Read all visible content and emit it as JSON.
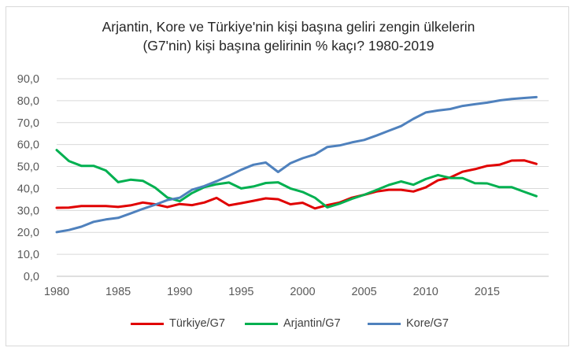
{
  "chart_data": {
    "type": "line",
    "title_lines": [
      "Arjantin, Kore ve Türkiye'nin kişi başına geliri zengin ülkelerin",
      "(G7'nin) kişi başına gelirinin % kaçı? 1980-2019"
    ],
    "xlabel": "",
    "ylabel": "",
    "x": [
      1980,
      1981,
      1982,
      1983,
      1984,
      1985,
      1986,
      1987,
      1988,
      1989,
      1990,
      1991,
      1992,
      1993,
      1994,
      1995,
      1996,
      1997,
      1998,
      1999,
      2000,
      2001,
      2002,
      2003,
      2004,
      2005,
      2006,
      2007,
      2008,
      2009,
      2010,
      2011,
      2012,
      2013,
      2014,
      2015,
      2016,
      2017,
      2018,
      2019
    ],
    "x_ticks": [
      "1980",
      "1985",
      "1990",
      "1995",
      "2000",
      "2005",
      "2010",
      "2015"
    ],
    "x_tick_values": [
      1980,
      1985,
      1990,
      1995,
      2000,
      2005,
      2010,
      2015
    ],
    "xlim": [
      1980,
      2020
    ],
    "y_ticks": [
      "0,0",
      "10,0",
      "20,0",
      "30,0",
      "40,0",
      "50,0",
      "60,0",
      "70,0",
      "80,0",
      "90,0"
    ],
    "ylim": [
      0,
      90
    ],
    "grid": "horizontal",
    "legend_position": "bottom",
    "series": [
      {
        "name": "Türkiye/G7",
        "color": "#e00000",
        "values": [
          31.2,
          31.3,
          32.0,
          32.0,
          32.0,
          31.6,
          32.3,
          33.6,
          32.8,
          31.5,
          32.9,
          32.4,
          33.6,
          35.7,
          32.3,
          33.3,
          34.4,
          35.5,
          35.1,
          32.8,
          33.5,
          30.9,
          32.4,
          33.6,
          35.8,
          37.1,
          38.6,
          39.4,
          39.4,
          38.6,
          40.5,
          43.7,
          45.0,
          47.6,
          48.8,
          50.3,
          50.8,
          52.7,
          52.8,
          51.2
        ]
      },
      {
        "name": "Arjantin/G7",
        "color": "#00b050",
        "values": [
          57.5,
          52.5,
          50.3,
          50.3,
          48.2,
          42.9,
          44.0,
          43.5,
          40.4,
          35.9,
          34.2,
          37.9,
          40.6,
          41.9,
          42.7,
          40.0,
          40.9,
          42.5,
          42.8,
          40.0,
          38.4,
          35.8,
          31.4,
          33.1,
          35.3,
          37.1,
          39.3,
          41.6,
          43.2,
          41.7,
          44.3,
          46.1,
          44.8,
          44.7,
          42.4,
          42.3,
          40.6,
          40.6,
          38.5,
          36.5
        ]
      },
      {
        "name": "Kore/G7",
        "color": "#4f81bd",
        "values": [
          20.1,
          21.1,
          22.6,
          24.8,
          25.9,
          26.6,
          28.6,
          30.7,
          32.6,
          34.7,
          35.8,
          39.4,
          41.1,
          43.3,
          45.8,
          48.5,
          50.8,
          51.8,
          47.5,
          51.5,
          53.8,
          55.5,
          58.9,
          59.6,
          61.0,
          62.1,
          64.1,
          66.3,
          68.4,
          71.7,
          74.6,
          75.5,
          76.2,
          77.6,
          78.4,
          79.1,
          80.1,
          80.8,
          81.2,
          81.6
        ]
      }
    ]
  }
}
